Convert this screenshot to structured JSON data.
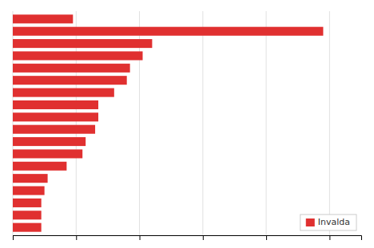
{
  "chart_data": {
    "type": "bar",
    "orientation": "horizontal",
    "categories": [
      null,
      null,
      null,
      null,
      null,
      null,
      null,
      null,
      null,
      null,
      null,
      null,
      null,
      null,
      null,
      null,
      null,
      null
    ],
    "series": [
      {
        "name": "Invalda",
        "color": "#e03030",
        "values": [
          9.5,
          49.0,
          22.0,
          20.5,
          18.5,
          18.0,
          16.0,
          13.5,
          13.5,
          13.0,
          11.5,
          11.0,
          8.5,
          5.5,
          5.0,
          4.5,
          4.5,
          4.5
        ]
      }
    ],
    "xlim": [
      0,
      55
    ],
    "xticks": [
      0,
      10,
      20,
      30,
      40,
      50
    ],
    "grid": true,
    "tick_labels": false,
    "legend": "lower right"
  }
}
